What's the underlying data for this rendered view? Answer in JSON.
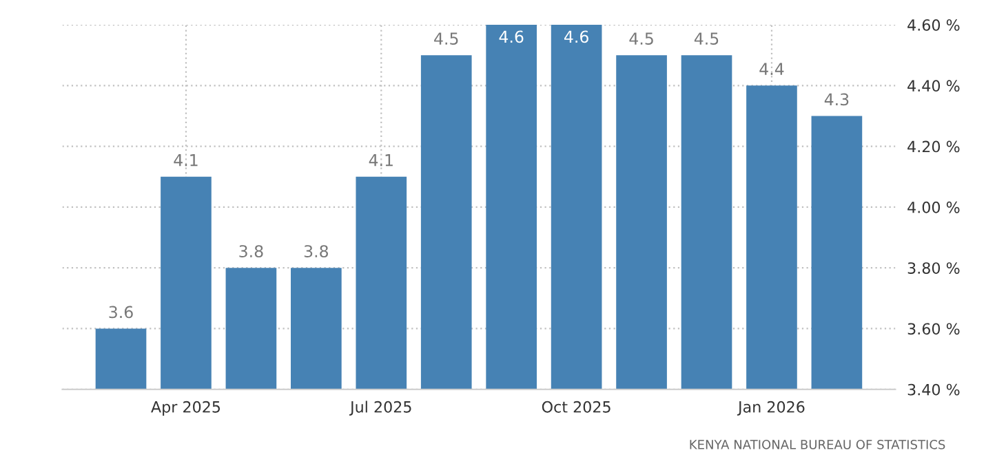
{
  "chart_data": {
    "type": "bar",
    "categories": [
      null,
      "Apr 2025",
      null,
      null,
      "Jul 2025",
      null,
      null,
      "Oct 2025",
      null,
      null,
      "Jan 2026",
      null
    ],
    "values": [
      3.6,
      4.1,
      3.8,
      3.8,
      4.1,
      4.5,
      4.6,
      4.6,
      4.5,
      4.5,
      4.4,
      4.3
    ],
    "color": "#4682b4",
    "ylim": [
      3.4,
      4.6
    ],
    "yticks": [
      {
        "value": 3.4,
        "label": "3.40 %"
      },
      {
        "value": 3.6,
        "label": "3.60 %"
      },
      {
        "value": 3.8,
        "label": "3.80 %"
      },
      {
        "value": 4.0,
        "label": "4.00 %"
      },
      {
        "value": 4.2,
        "label": "4.20 %"
      },
      {
        "value": 4.4,
        "label": "4.40 %"
      },
      {
        "value": 4.6,
        "label": "4.60 %"
      }
    ],
    "grid": true,
    "data_labels": true,
    "annotations": [
      "KENYA NATIONAL BUREAU OF STATISTICS"
    ]
  }
}
